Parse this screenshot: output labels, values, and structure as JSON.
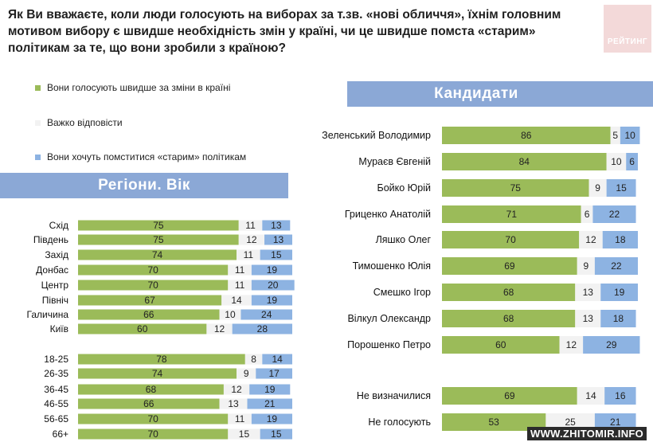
{
  "question": "Як Ви вважаєте, коли люди голосують на виборах за т.зв. «нові обличчя», їхнім головним мотивом вибору є швидше необхідність змін у країні, чи це швидше помста «старим» політикам за те, що вони зробили з країною?",
  "logo_text": "РЕЙТИНГ",
  "watermark": "WWW.ZHITOMIR.INFO",
  "colors": {
    "green": "#9bbb59",
    "gray": "#f2f2f2",
    "blue": "#8db3e2",
    "banner": "#8ba8d6"
  },
  "legend": [
    {
      "label": "Вони голосують швидше за зміни в країні",
      "color": "#9bbb59"
    },
    {
      "label": "Важко відповісти",
      "color": "#f2f2f2"
    },
    {
      "label": "Вони хочуть помститися «старим» політикам",
      "color": "#8db3e2"
    }
  ],
  "regions_title": "Регіони. Вік",
  "candidates_title": "Кандидати",
  "chart_data": [
    {
      "type": "bar",
      "stacked": true,
      "orientation": "horizontal",
      "title": "Регіони. Вік",
      "categories": [
        "Схід",
        "Південь",
        "Захід",
        "Донбас",
        "Центр",
        "Північ",
        "Галичина",
        "Київ",
        "18-25",
        "26-35",
        "36-45",
        "46-55",
        "56-65",
        "66+"
      ],
      "series": [
        {
          "name": "Вони голосують швидше за зміни в країні",
          "values": [
            75,
            75,
            74,
            70,
            70,
            67,
            66,
            60,
            78,
            74,
            68,
            66,
            70,
            70
          ]
        },
        {
          "name": "Важко відповісти",
          "values": [
            11,
            12,
            11,
            11,
            11,
            14,
            10,
            12,
            8,
            9,
            12,
            13,
            11,
            15
          ]
        },
        {
          "name": "Вони хочуть помститися «старим» політикам",
          "values": [
            13,
            13,
            15,
            19,
            20,
            19,
            24,
            28,
            14,
            17,
            19,
            21,
            19,
            15
          ]
        }
      ],
      "xlim": [
        0,
        100
      ]
    },
    {
      "type": "bar",
      "stacked": true,
      "orientation": "horizontal",
      "title": "Кандидати",
      "categories": [
        "Зеленський Володимир",
        "Мураєв Євгеній",
        "Бойко Юрій",
        "Гриценко Анатолій",
        "Ляшко Олег",
        "Тимошенко Юлія",
        "Смешко Ігор",
        "Вілкул Олександр",
        "Порошенко Петро",
        "Не визначилися",
        "Не голосують"
      ],
      "series": [
        {
          "name": "Вони голосують швидше за зміни в країні",
          "values": [
            86,
            84,
            75,
            71,
            70,
            69,
            68,
            68,
            60,
            69,
            53
          ]
        },
        {
          "name": "Важко відповісти",
          "values": [
            5,
            10,
            9,
            6,
            12,
            9,
            13,
            13,
            12,
            14,
            25
          ]
        },
        {
          "name": "Вони хочуть помститися «старим» політикам",
          "values": [
            10,
            6,
            15,
            22,
            18,
            22,
            19,
            18,
            29,
            16,
            21
          ]
        }
      ],
      "xlim": [
        0,
        100
      ]
    }
  ]
}
